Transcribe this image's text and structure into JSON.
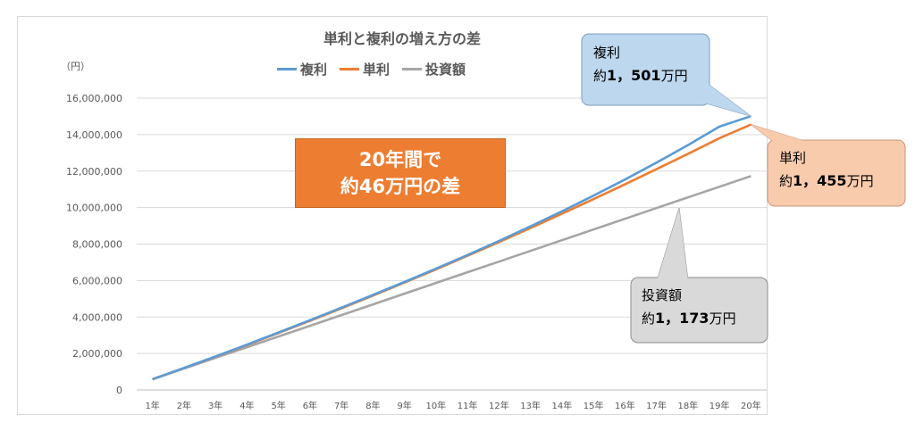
{
  "chart_data": {
    "type": "line",
    "title": "単利と複利の増え方の差",
    "unit_label": "（円）",
    "categories": [
      "1年",
      "2年",
      "3年",
      "4年",
      "5年",
      "6年",
      "7年",
      "8年",
      "9年",
      "10年",
      "11年",
      "12年",
      "13年",
      "14年",
      "15年",
      "16年",
      "17年",
      "18年",
      "19年",
      "20年"
    ],
    "ylim": [
      0,
      16000000
    ],
    "yticks": [
      "0",
      "2,000,000",
      "4,000,000",
      "6,000,000",
      "8,000,000",
      "10,000,000",
      "12,000,000",
      "14,000,000",
      "16,000,000"
    ],
    "ytick_values": [
      0,
      2000000,
      4000000,
      6000000,
      8000000,
      10000000,
      12000000,
      14000000,
      16000000
    ],
    "grid": true,
    "legend_position": "top",
    "series": [
      {
        "name": "複利",
        "color": "#5b9bd5",
        "values": [
          586500,
          1203000,
          1836000,
          2486000,
          3150000,
          3826000,
          4512000,
          5209000,
          5921000,
          6651000,
          7400000,
          8172000,
          8970000,
          9796000,
          10651000,
          11539000,
          12463000,
          13428000,
          14441000,
          15010000
        ]
      },
      {
        "name": "単利",
        "color": "#ed7d31",
        "values": [
          586500,
          1199000,
          1826000,
          2466000,
          3121000,
          3790000,
          4474000,
          5172000,
          5884000,
          6611000,
          7352000,
          8108000,
          8878000,
          9663000,
          10462000,
          11275000,
          12103000,
          12946000,
          13803000,
          14550000
        ]
      },
      {
        "name": "投資額",
        "color": "#a5a5a5",
        "values": [
          586500,
          1173000,
          1759500,
          2346000,
          2932500,
          3519000,
          4105500,
          4692000,
          5278500,
          5865000,
          6451500,
          7038000,
          7624500,
          8211000,
          8797500,
          9384000,
          9970500,
          10557000,
          11143500,
          11730000
        ]
      }
    ]
  },
  "highlight": {
    "line1": "20年間で",
    "line2": "約46万円の差"
  },
  "callouts": {
    "compound": {
      "label": "複利",
      "prefix": "約",
      "value": "1，501",
      "suffix": "万円",
      "fill": "#bdd7ee",
      "border": "#7f9db9"
    },
    "simple": {
      "label": "単利",
      "prefix": "約",
      "value": "1，455",
      "suffix": "万円",
      "fill": "#f8cbad",
      "border": "#c9967a"
    },
    "invest": {
      "label": "投資額",
      "prefix": "約",
      "value": "1，173",
      "suffix": "万円",
      "fill": "#d9d9d9",
      "border": "#8c8c8c"
    }
  }
}
